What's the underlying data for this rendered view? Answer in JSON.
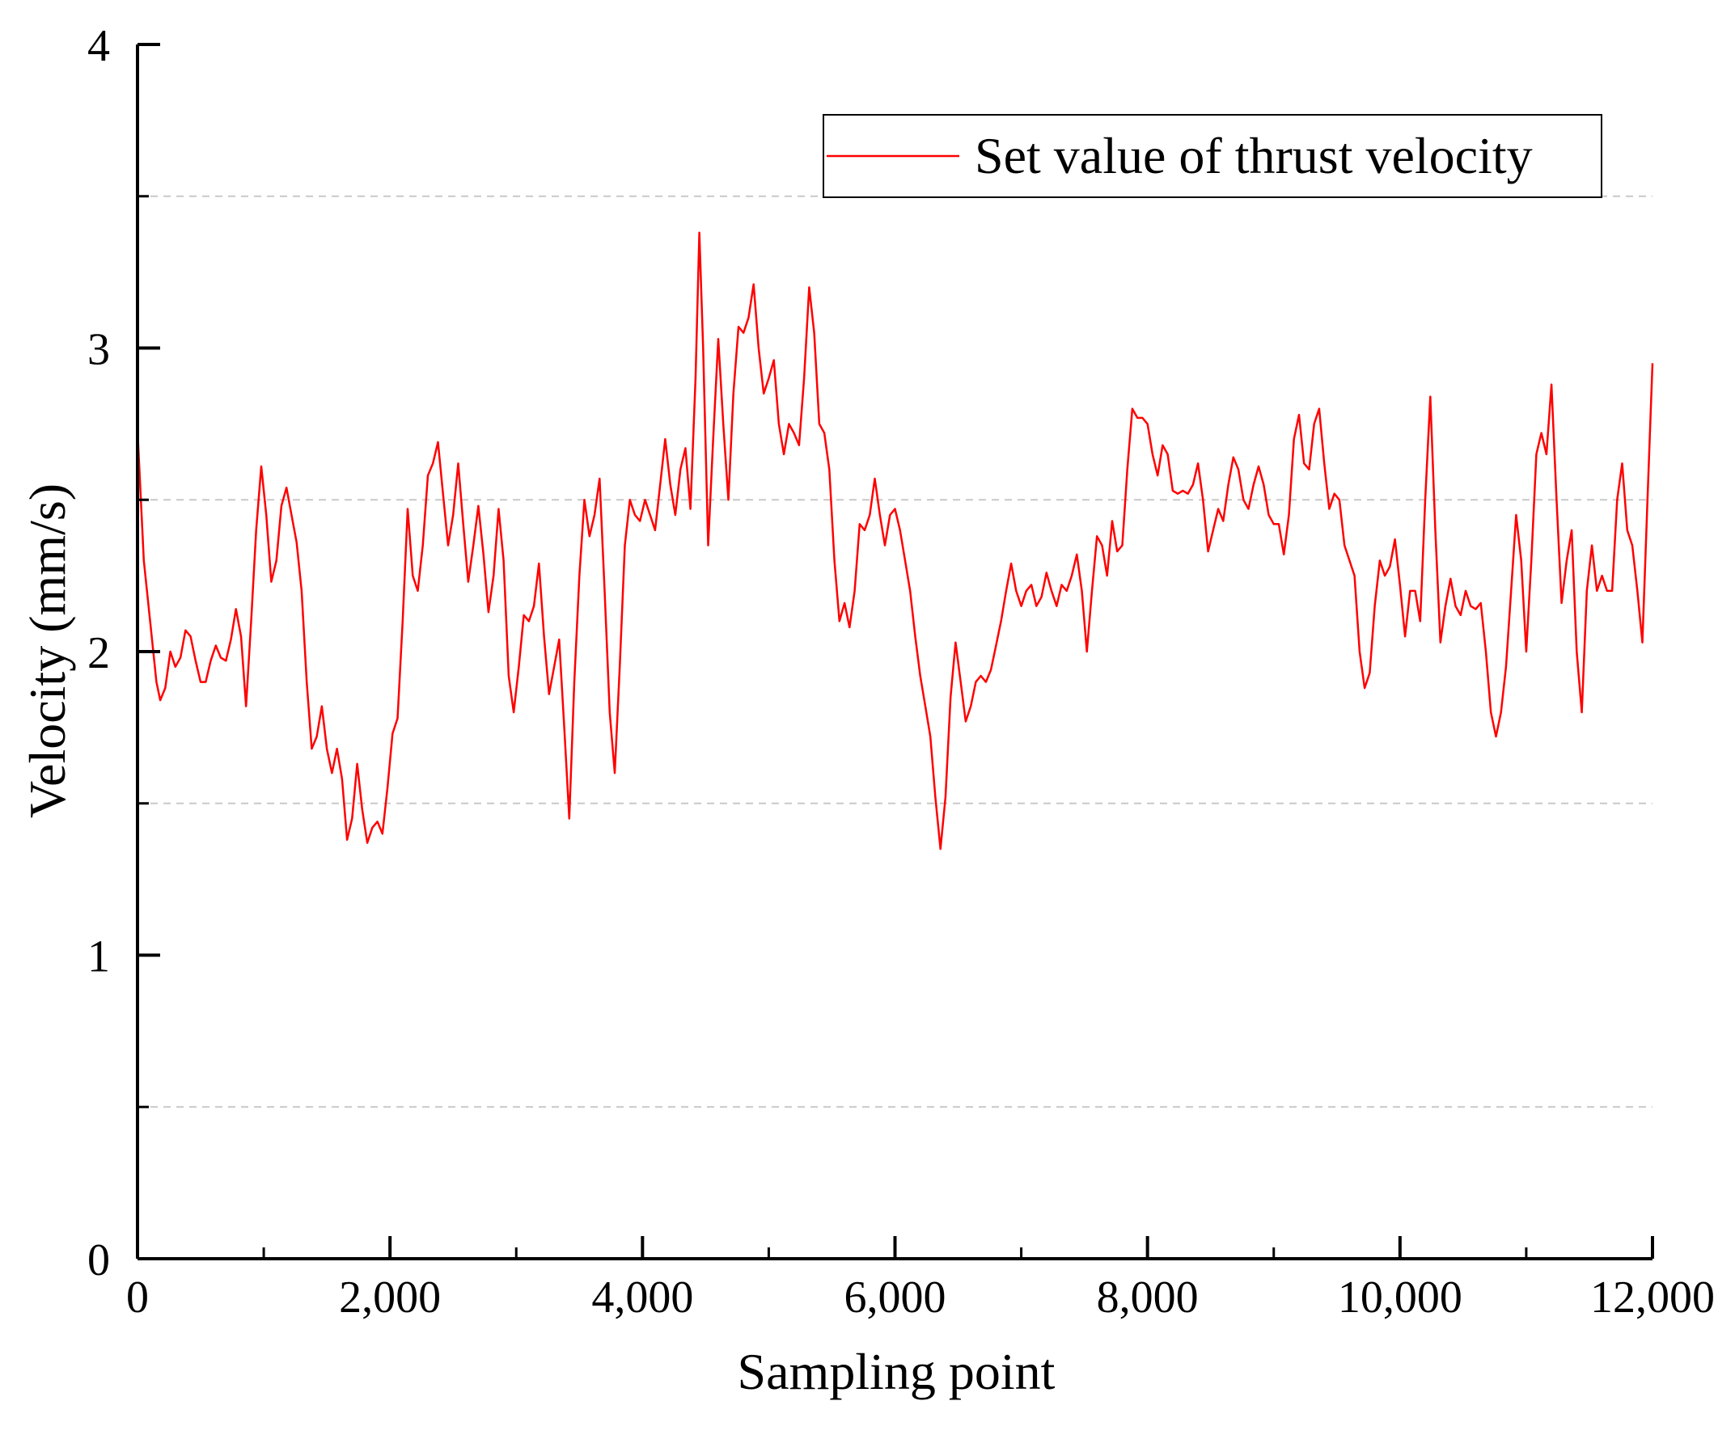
{
  "chart_data": {
    "type": "line",
    "title": "",
    "xlabel": "Sampling point",
    "ylabel": "Velocity (mm/s)",
    "xlim": [
      0,
      12000
    ],
    "ylim": [
      0,
      4
    ],
    "x_ticks": [
      0,
      2000,
      4000,
      6000,
      8000,
      10000,
      12000
    ],
    "x_tick_labels": [
      "0",
      "2,000",
      "4,000",
      "6,000",
      "8,000",
      "10,000",
      "12,000"
    ],
    "y_ticks": [
      0,
      1,
      2,
      3,
      4
    ],
    "y_tick_labels": [
      "0",
      "1",
      "2",
      "3",
      "4"
    ],
    "grid": "horizontal dashed at 0.5, 1.5, 2.5, 3.5",
    "legend_placement": "top-right",
    "series": [
      {
        "name": "Set value of thrust velocity",
        "color": "#ff0000",
        "points": [
          [
            0,
            2.73
          ],
          [
            50,
            2.3
          ],
          [
            100,
            2.1
          ],
          [
            150,
            1.9
          ],
          [
            180,
            1.84
          ],
          [
            220,
            1.88
          ],
          [
            260,
            2.0
          ],
          [
            300,
            1.95
          ],
          [
            340,
            1.98
          ],
          [
            380,
            2.07
          ],
          [
            420,
            2.05
          ],
          [
            460,
            1.97
          ],
          [
            500,
            1.9
          ],
          [
            540,
            1.9
          ],
          [
            580,
            1.97
          ],
          [
            620,
            2.02
          ],
          [
            660,
            1.98
          ],
          [
            700,
            1.97
          ],
          [
            740,
            2.04
          ],
          [
            780,
            2.14
          ],
          [
            820,
            2.05
          ],
          [
            860,
            1.82
          ],
          [
            900,
            2.1
          ],
          [
            940,
            2.4
          ],
          [
            980,
            2.61
          ],
          [
            1020,
            2.45
          ],
          [
            1060,
            2.23
          ],
          [
            1100,
            2.3
          ],
          [
            1140,
            2.48
          ],
          [
            1180,
            2.54
          ],
          [
            1220,
            2.45
          ],
          [
            1260,
            2.36
          ],
          [
            1300,
            2.2
          ],
          [
            1340,
            1.9
          ],
          [
            1380,
            1.68
          ],
          [
            1420,
            1.72
          ],
          [
            1460,
            1.82
          ],
          [
            1500,
            1.68
          ],
          [
            1540,
            1.6
          ],
          [
            1580,
            1.68
          ],
          [
            1620,
            1.58
          ],
          [
            1660,
            1.38
          ],
          [
            1700,
            1.45
          ],
          [
            1740,
            1.63
          ],
          [
            1780,
            1.48
          ],
          [
            1820,
            1.37
          ],
          [
            1860,
            1.42
          ],
          [
            1900,
            1.44
          ],
          [
            1940,
            1.4
          ],
          [
            1980,
            1.55
          ],
          [
            2020,
            1.73
          ],
          [
            2060,
            1.78
          ],
          [
            2100,
            2.1
          ],
          [
            2140,
            2.47
          ],
          [
            2180,
            2.25
          ],
          [
            2220,
            2.2
          ],
          [
            2260,
            2.35
          ],
          [
            2300,
            2.58
          ],
          [
            2340,
            2.62
          ],
          [
            2380,
            2.69
          ],
          [
            2420,
            2.52
          ],
          [
            2460,
            2.35
          ],
          [
            2500,
            2.45
          ],
          [
            2540,
            2.62
          ],
          [
            2580,
            2.42
          ],
          [
            2620,
            2.23
          ],
          [
            2660,
            2.35
          ],
          [
            2700,
            2.48
          ],
          [
            2740,
            2.32
          ],
          [
            2780,
            2.13
          ],
          [
            2820,
            2.25
          ],
          [
            2860,
            2.47
          ],
          [
            2900,
            2.3
          ],
          [
            2940,
            1.92
          ],
          [
            2980,
            1.8
          ],
          [
            3020,
            1.95
          ],
          [
            3060,
            2.12
          ],
          [
            3100,
            2.1
          ],
          [
            3140,
            2.15
          ],
          [
            3180,
            2.29
          ],
          [
            3220,
            2.05
          ],
          [
            3260,
            1.86
          ],
          [
            3300,
            1.95
          ],
          [
            3340,
            2.04
          ],
          [
            3380,
            1.75
          ],
          [
            3420,
            1.45
          ],
          [
            3460,
            1.9
          ],
          [
            3500,
            2.25
          ],
          [
            3540,
            2.5
          ],
          [
            3580,
            2.38
          ],
          [
            3620,
            2.45
          ],
          [
            3660,
            2.57
          ],
          [
            3700,
            2.2
          ],
          [
            3740,
            1.8
          ],
          [
            3780,
            1.6
          ],
          [
            3820,
            1.95
          ],
          [
            3860,
            2.35
          ],
          [
            3900,
            2.5
          ],
          [
            3940,
            2.45
          ],
          [
            3980,
            2.43
          ],
          [
            4020,
            2.5
          ],
          [
            4060,
            2.45
          ],
          [
            4100,
            2.4
          ],
          [
            4140,
            2.55
          ],
          [
            4180,
            2.7
          ],
          [
            4220,
            2.55
          ],
          [
            4260,
            2.45
          ],
          [
            4300,
            2.6
          ],
          [
            4340,
            2.67
          ],
          [
            4380,
            2.47
          ],
          [
            4420,
            2.9
          ],
          [
            4450,
            3.38
          ],
          [
            4480,
            3.0
          ],
          [
            4520,
            2.35
          ],
          [
            4560,
            2.7
          ],
          [
            4600,
            3.03
          ],
          [
            4640,
            2.75
          ],
          [
            4680,
            2.5
          ],
          [
            4720,
            2.85
          ],
          [
            4760,
            3.07
          ],
          [
            4800,
            3.05
          ],
          [
            4840,
            3.1
          ],
          [
            4880,
            3.21
          ],
          [
            4920,
            3.0
          ],
          [
            4960,
            2.85
          ],
          [
            5000,
            2.9
          ],
          [
            5040,
            2.96
          ],
          [
            5080,
            2.75
          ],
          [
            5120,
            2.65
          ],
          [
            5160,
            2.75
          ],
          [
            5200,
            2.72
          ],
          [
            5240,
            2.68
          ],
          [
            5280,
            2.9
          ],
          [
            5320,
            3.2
          ],
          [
            5360,
            3.05
          ],
          [
            5400,
            2.75
          ],
          [
            5440,
            2.72
          ],
          [
            5480,
            2.6
          ],
          [
            5520,
            2.3
          ],
          [
            5560,
            2.1
          ],
          [
            5600,
            2.16
          ],
          [
            5640,
            2.08
          ],
          [
            5680,
            2.2
          ],
          [
            5720,
            2.42
          ],
          [
            5760,
            2.4
          ],
          [
            5800,
            2.45
          ],
          [
            5840,
            2.57
          ],
          [
            5880,
            2.45
          ],
          [
            5920,
            2.35
          ],
          [
            5960,
            2.45
          ],
          [
            6000,
            2.47
          ],
          [
            6040,
            2.4
          ],
          [
            6080,
            2.3
          ],
          [
            6120,
            2.2
          ],
          [
            6160,
            2.05
          ],
          [
            6200,
            1.92
          ],
          [
            6240,
            1.82
          ],
          [
            6280,
            1.72
          ],
          [
            6320,
            1.52
          ],
          [
            6360,
            1.35
          ],
          [
            6400,
            1.52
          ],
          [
            6440,
            1.85
          ],
          [
            6480,
            2.03
          ],
          [
            6520,
            1.9
          ],
          [
            6560,
            1.77
          ],
          [
            6600,
            1.82
          ],
          [
            6640,
            1.9
          ],
          [
            6680,
            1.92
          ],
          [
            6720,
            1.9
          ],
          [
            6760,
            1.94
          ],
          [
            6800,
            2.02
          ],
          [
            6840,
            2.1
          ],
          [
            6880,
            2.2
          ],
          [
            6920,
            2.29
          ],
          [
            6960,
            2.2
          ],
          [
            7000,
            2.15
          ],
          [
            7040,
            2.2
          ],
          [
            7080,
            2.22
          ],
          [
            7120,
            2.15
          ],
          [
            7160,
            2.18
          ],
          [
            7200,
            2.26
          ],
          [
            7240,
            2.2
          ],
          [
            7280,
            2.15
          ],
          [
            7320,
            2.22
          ],
          [
            7360,
            2.2
          ],
          [
            7400,
            2.25
          ],
          [
            7440,
            2.32
          ],
          [
            7480,
            2.2
          ],
          [
            7520,
            2.0
          ],
          [
            7560,
            2.2
          ],
          [
            7600,
            2.38
          ],
          [
            7640,
            2.35
          ],
          [
            7680,
            2.25
          ],
          [
            7720,
            2.43
          ],
          [
            7760,
            2.33
          ],
          [
            7800,
            2.35
          ],
          [
            7840,
            2.6
          ],
          [
            7880,
            2.8
          ],
          [
            7920,
            2.77
          ],
          [
            7960,
            2.77
          ],
          [
            8000,
            2.75
          ],
          [
            8040,
            2.65
          ],
          [
            8080,
            2.58
          ],
          [
            8120,
            2.68
          ],
          [
            8160,
            2.65
          ],
          [
            8200,
            2.53
          ],
          [
            8240,
            2.52
          ],
          [
            8280,
            2.53
          ],
          [
            8320,
            2.52
          ],
          [
            8360,
            2.55
          ],
          [
            8400,
            2.62
          ],
          [
            8440,
            2.5
          ],
          [
            8480,
            2.33
          ],
          [
            8520,
            2.4
          ],
          [
            8560,
            2.47
          ],
          [
            8600,
            2.43
          ],
          [
            8640,
            2.55
          ],
          [
            8680,
            2.64
          ],
          [
            8720,
            2.6
          ],
          [
            8760,
            2.5
          ],
          [
            8800,
            2.47
          ],
          [
            8840,
            2.55
          ],
          [
            8880,
            2.61
          ],
          [
            8920,
            2.55
          ],
          [
            8960,
            2.45
          ],
          [
            9000,
            2.42
          ],
          [
            9040,
            2.42
          ],
          [
            9080,
            2.32
          ],
          [
            9120,
            2.45
          ],
          [
            9160,
            2.7
          ],
          [
            9200,
            2.78
          ],
          [
            9240,
            2.62
          ],
          [
            9280,
            2.6
          ],
          [
            9320,
            2.75
          ],
          [
            9360,
            2.8
          ],
          [
            9400,
            2.62
          ],
          [
            9440,
            2.47
          ],
          [
            9480,
            2.52
          ],
          [
            9520,
            2.5
          ],
          [
            9560,
            2.35
          ],
          [
            9600,
            2.3
          ],
          [
            9640,
            2.25
          ],
          [
            9680,
            2.0
          ],
          [
            9720,
            1.88
          ],
          [
            9760,
            1.93
          ],
          [
            9800,
            2.15
          ],
          [
            9840,
            2.3
          ],
          [
            9880,
            2.25
          ],
          [
            9920,
            2.28
          ],
          [
            9960,
            2.37
          ],
          [
            10000,
            2.22
          ],
          [
            10040,
            2.05
          ],
          [
            10080,
            2.2
          ],
          [
            10120,
            2.2
          ],
          [
            10160,
            2.1
          ],
          [
            10200,
            2.5
          ],
          [
            10240,
            2.84
          ],
          [
            10280,
            2.4
          ],
          [
            10320,
            2.03
          ],
          [
            10360,
            2.15
          ],
          [
            10400,
            2.24
          ],
          [
            10440,
            2.15
          ],
          [
            10480,
            2.12
          ],
          [
            10520,
            2.2
          ],
          [
            10560,
            2.15
          ],
          [
            10600,
            2.14
          ],
          [
            10640,
            2.16
          ],
          [
            10680,
            2.0
          ],
          [
            10720,
            1.8
          ],
          [
            10760,
            1.72
          ],
          [
            10800,
            1.8
          ],
          [
            10840,
            1.95
          ],
          [
            10880,
            2.2
          ],
          [
            10920,
            2.45
          ],
          [
            10960,
            2.3
          ],
          [
            11000,
            2.0
          ],
          [
            11040,
            2.3
          ],
          [
            11080,
            2.65
          ],
          [
            11120,
            2.72
          ],
          [
            11160,
            2.65
          ],
          [
            11200,
            2.88
          ],
          [
            11240,
            2.5
          ],
          [
            11280,
            2.16
          ],
          [
            11320,
            2.3
          ],
          [
            11360,
            2.4
          ],
          [
            11400,
            2.0
          ],
          [
            11440,
            1.8
          ],
          [
            11480,
            2.2
          ],
          [
            11520,
            2.35
          ],
          [
            11560,
            2.2
          ],
          [
            11600,
            2.25
          ],
          [
            11640,
            2.2
          ],
          [
            11680,
            2.2
          ],
          [
            11720,
            2.5
          ],
          [
            11760,
            2.62
          ],
          [
            11800,
            2.4
          ],
          [
            11840,
            2.35
          ],
          [
            11880,
            2.2
          ],
          [
            11920,
            2.03
          ],
          [
            11960,
            2.5
          ],
          [
            12000,
            2.95
          ]
        ]
      }
    ]
  }
}
